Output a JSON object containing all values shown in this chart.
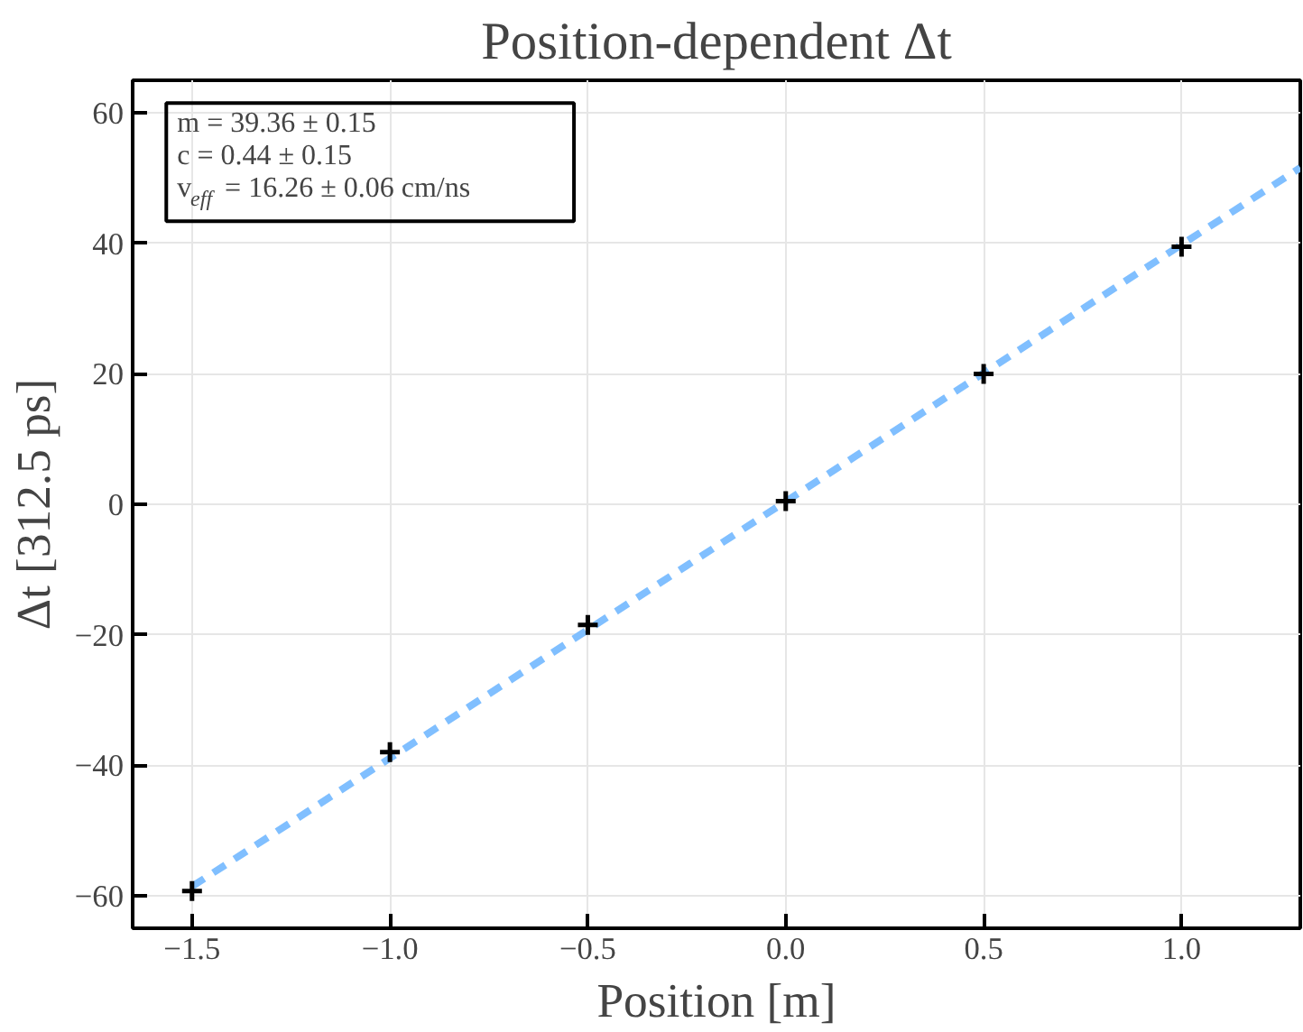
{
  "chart_data": {
    "type": "scatter",
    "title": "Position-dependent Δt",
    "xlabel": "Position [m]",
    "ylabel": "Δt [312.5 ps]",
    "x": [
      -1.5,
      -1.0,
      -0.5,
      0.0,
      0.5,
      1.0
    ],
    "series": [
      {
        "color": "#000000",
        "marker": "cross",
        "values": [
          -59.3,
          -38.0,
          -18.5,
          0.5,
          20.0,
          39.5
        ]
      },
      {
        "type": "line",
        "color": "#80bfff",
        "line_style": "dashed",
        "marker": "none",
        "x": [
          -1.5,
          1.3
        ],
        "values": [
          -58.6,
          51.6
        ]
      }
    ],
    "xlim": [
      -1.65,
      1.3
    ],
    "ylim": [
      -65,
      65
    ],
    "xticks": [
      {
        "value": -1.5,
        "label": "−1.5"
      },
      {
        "value": -1.0,
        "label": "−1.0"
      },
      {
        "value": -0.5,
        "label": "−0.5"
      },
      {
        "value": 0.0,
        "label": "0.0"
      },
      {
        "value": 0.5,
        "label": "0.5"
      },
      {
        "value": 1.0,
        "label": "1.0"
      }
    ],
    "yticks": [
      {
        "value": -60,
        "label": "−60"
      },
      {
        "value": -40,
        "label": "−40"
      },
      {
        "value": -20,
        "label": "−20"
      },
      0,
      20,
      40,
      60
    ],
    "annotations": [
      "m    = 39.36 ± 0.15",
      "c     =  0.44 ± 0.15",
      "v$_{eff}$ = 16.26 ± 0.06 cm/ns"
    ],
    "grid": true
  }
}
